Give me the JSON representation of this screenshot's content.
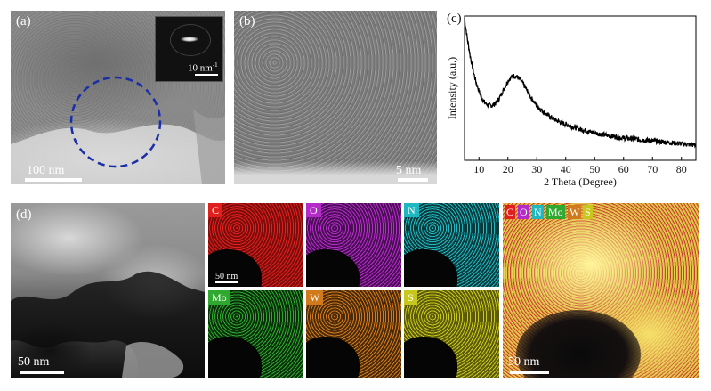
{
  "panel_a": {
    "label": "(a)",
    "scale_bar": "100 nm",
    "inset_scale_bar": "10 nm",
    "inset_scale_sup": "-1"
  },
  "panel_b": {
    "label": "(b)",
    "scale_bar": "5 nm"
  },
  "panel_c": {
    "label": "(c)"
  },
  "panel_d": {
    "label": "(d)",
    "scale_bar": "50 nm",
    "map_scale_bar": "50 nm",
    "overlay_scale_bar": "50 nm",
    "maps": [
      {
        "element": "C",
        "color": "#e0201c"
      },
      {
        "element": "O",
        "color": "#b42cc8"
      },
      {
        "element": "N",
        "color": "#1fb8c0"
      },
      {
        "element": "Mo",
        "color": "#2ea82e"
      },
      {
        "element": "W",
        "color": "#d07a1c"
      },
      {
        "element": "S",
        "color": "#c8c81c"
      }
    ]
  },
  "chart_data": {
    "type": "line",
    "xlabel": "2 Theta (Degree)",
    "ylabel": "Intensity (a.u.)",
    "xlim": [
      5,
      85
    ],
    "xticks": [
      10,
      20,
      30,
      40,
      50,
      60,
      70,
      80
    ],
    "yticks": false,
    "grid": false,
    "series": [
      {
        "x": [
          5,
          6,
          7,
          8,
          9,
          10,
          11,
          12,
          13,
          14,
          15,
          16,
          17,
          18,
          19,
          20,
          21,
          22,
          23,
          24,
          25,
          26,
          27,
          28,
          29,
          30,
          32,
          34,
          36,
          38,
          40,
          42,
          45,
          50,
          55,
          60,
          65,
          70,
          75,
          80,
          85
        ],
        "values": [
          0.98,
          0.84,
          0.72,
          0.62,
          0.54,
          0.48,
          0.43,
          0.4,
          0.385,
          0.38,
          0.385,
          0.4,
          0.43,
          0.47,
          0.51,
          0.55,
          0.575,
          0.585,
          0.58,
          0.565,
          0.54,
          0.505,
          0.47,
          0.435,
          0.405,
          0.38,
          0.34,
          0.31,
          0.285,
          0.265,
          0.25,
          0.235,
          0.215,
          0.19,
          0.17,
          0.155,
          0.145,
          0.135,
          0.125,
          0.115,
          0.105
        ]
      }
    ]
  }
}
